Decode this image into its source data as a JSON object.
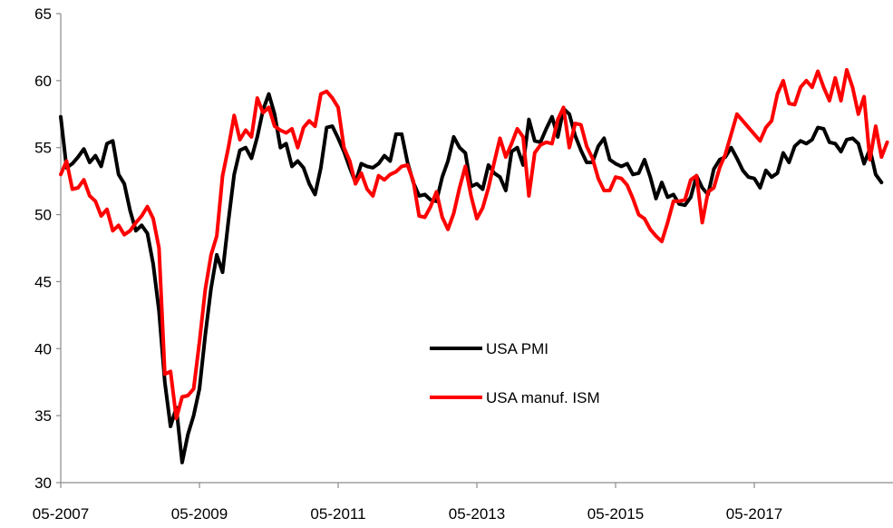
{
  "colors": {
    "usa_pmi": "#000000",
    "usa_ism": "#ff0000",
    "axis": "#8c8c8c"
  },
  "chart_data": {
    "type": "line",
    "title": "",
    "xlabel": "",
    "ylabel": "",
    "ylim": [
      30,
      65
    ],
    "yticks": [
      30,
      35,
      40,
      45,
      50,
      55,
      60,
      65
    ],
    "xlim": [
      "05-2007",
      "11-2018"
    ],
    "xticks": [
      "05-2007",
      "05-2009",
      "05-2011",
      "05-2013",
      "05-2015",
      "05-2017"
    ],
    "grid": false,
    "legend_position": "center-right",
    "series": [
      {
        "name": "USA PMI",
        "color": "#000000",
        "points": [
          [
            "2007-05",
            57.3
          ],
          [
            "2007-06",
            53.5
          ],
          [
            "2007-07",
            53.8
          ],
          [
            "2007-08",
            54.3
          ],
          [
            "2007-09",
            54.9
          ],
          [
            "2007-10",
            53.9
          ],
          [
            "2007-11",
            54.4
          ],
          [
            "2007-12",
            53.6
          ],
          [
            "2008-01",
            55.3
          ],
          [
            "2008-02",
            55.5
          ],
          [
            "2008-03",
            53.0
          ],
          [
            "2008-04",
            52.3
          ],
          [
            "2008-05",
            50.3
          ],
          [
            "2008-06",
            48.8
          ],
          [
            "2008-07",
            49.2
          ],
          [
            "2008-08",
            48.6
          ],
          [
            "2008-09",
            46.3
          ],
          [
            "2008-10",
            42.8
          ],
          [
            "2008-11",
            37.5
          ],
          [
            "2008-12",
            34.2
          ],
          [
            "2009-01",
            35.6
          ],
          [
            "2009-02",
            31.5
          ],
          [
            "2009-03",
            33.6
          ],
          [
            "2009-04",
            35.0
          ],
          [
            "2009-05",
            37.0
          ],
          [
            "2009-06",
            41.0
          ],
          [
            "2009-07",
            44.5
          ],
          [
            "2009-08",
            47.0
          ],
          [
            "2009-09",
            45.7
          ],
          [
            "2009-10",
            49.5
          ],
          [
            "2009-11",
            53.0
          ],
          [
            "2009-12",
            54.8
          ],
          [
            "2010-01",
            55.0
          ],
          [
            "2010-02",
            54.2
          ],
          [
            "2010-03",
            55.8
          ],
          [
            "2010-04",
            57.8
          ],
          [
            "2010-05",
            59.0
          ],
          [
            "2010-06",
            57.5
          ],
          [
            "2010-07",
            55.0
          ],
          [
            "2010-08",
            55.3
          ],
          [
            "2010-09",
            53.6
          ],
          [
            "2010-10",
            54.0
          ],
          [
            "2010-11",
            53.5
          ],
          [
            "2010-12",
            52.3
          ],
          [
            "2011-01",
            51.5
          ],
          [
            "2011-02",
            53.5
          ],
          [
            "2011-03",
            56.5
          ],
          [
            "2011-04",
            56.6
          ],
          [
            "2011-05",
            55.7
          ],
          [
            "2011-06",
            54.7
          ],
          [
            "2011-07",
            53.5
          ],
          [
            "2011-08",
            52.4
          ],
          [
            "2011-09",
            53.8
          ],
          [
            "2011-10",
            53.6
          ],
          [
            "2011-11",
            53.5
          ],
          [
            "2011-12",
            53.8
          ],
          [
            "2012-01",
            54.4
          ],
          [
            "2012-02",
            54.0
          ],
          [
            "2012-03",
            56.0
          ],
          [
            "2012-04",
            56.0
          ],
          [
            "2012-05",
            53.9
          ],
          [
            "2012-06",
            52.4
          ],
          [
            "2012-07",
            51.4
          ],
          [
            "2012-08",
            51.5
          ],
          [
            "2012-09",
            51.1
          ],
          [
            "2012-10",
            51.0
          ],
          [
            "2012-11",
            52.8
          ],
          [
            "2012-12",
            54.0
          ],
          [
            "2013-01",
            55.8
          ],
          [
            "2013-02",
            55.0
          ],
          [
            "2013-03",
            54.6
          ],
          [
            "2013-04",
            52.1
          ],
          [
            "2013-05",
            52.3
          ],
          [
            "2013-06",
            51.9
          ],
          [
            "2013-07",
            53.7
          ],
          [
            "2013-08",
            53.1
          ],
          [
            "2013-09",
            52.8
          ],
          [
            "2013-10",
            51.8
          ],
          [
            "2013-11",
            54.7
          ],
          [
            "2013-12",
            55.0
          ],
          [
            "2014-01",
            53.7
          ],
          [
            "2014-02",
            57.1
          ],
          [
            "2014-03",
            55.5
          ],
          [
            "2014-04",
            55.4
          ],
          [
            "2014-05",
            56.4
          ],
          [
            "2014-06",
            57.3
          ],
          [
            "2014-07",
            55.8
          ],
          [
            "2014-08",
            57.9
          ],
          [
            "2014-09",
            57.5
          ],
          [
            "2014-10",
            55.9
          ],
          [
            "2014-11",
            54.8
          ],
          [
            "2014-12",
            53.9
          ],
          [
            "2015-01",
            53.9
          ],
          [
            "2015-02",
            55.1
          ],
          [
            "2015-03",
            55.7
          ],
          [
            "2015-04",
            54.1
          ],
          [
            "2015-05",
            53.8
          ],
          [
            "2015-06",
            53.6
          ],
          [
            "2015-07",
            53.8
          ],
          [
            "2015-08",
            53.0
          ],
          [
            "2015-09",
            53.1
          ],
          [
            "2015-10",
            54.1
          ],
          [
            "2015-11",
            52.8
          ],
          [
            "2015-12",
            51.2
          ],
          [
            "2016-01",
            52.4
          ],
          [
            "2016-02",
            51.3
          ],
          [
            "2016-03",
            51.5
          ],
          [
            "2016-04",
            50.8
          ],
          [
            "2016-05",
            50.7
          ],
          [
            "2016-06",
            51.3
          ],
          [
            "2016-07",
            52.9
          ],
          [
            "2016-08",
            52.0
          ],
          [
            "2016-09",
            51.5
          ],
          [
            "2016-10",
            53.4
          ],
          [
            "2016-11",
            54.1
          ],
          [
            "2016-12",
            54.3
          ],
          [
            "2017-01",
            55.0
          ],
          [
            "2017-02",
            54.2
          ],
          [
            "2017-03",
            53.3
          ],
          [
            "2017-04",
            52.8
          ],
          [
            "2017-05",
            52.7
          ],
          [
            "2017-06",
            52.0
          ],
          [
            "2017-07",
            53.3
          ],
          [
            "2017-08",
            52.8
          ],
          [
            "2017-09",
            53.1
          ],
          [
            "2017-10",
            54.6
          ],
          [
            "2017-11",
            53.9
          ],
          [
            "2017-12",
            55.1
          ],
          [
            "2018-01",
            55.5
          ],
          [
            "2018-02",
            55.3
          ],
          [
            "2018-03",
            55.6
          ],
          [
            "2018-04",
            56.5
          ],
          [
            "2018-05",
            56.4
          ],
          [
            "2018-06",
            55.4
          ],
          [
            "2018-07",
            55.3
          ],
          [
            "2018-08",
            54.7
          ],
          [
            "2018-09",
            55.6
          ],
          [
            "2018-10",
            55.7
          ],
          [
            "2018-11",
            55.3
          ],
          [
            "2018-12",
            53.8
          ],
          [
            "2019-01",
            54.9
          ],
          [
            "2019-02",
            53.0
          ],
          [
            "2019-03",
            52.4
          ]
        ]
      },
      {
        "name": "USA manuf. ISM",
        "color": "#ff0000",
        "points": [
          [
            "2007-05",
            53.0
          ],
          [
            "2007-06",
            54.0
          ],
          [
            "2007-07",
            51.9
          ],
          [
            "2007-08",
            52.0
          ],
          [
            "2007-09",
            52.6
          ],
          [
            "2007-10",
            51.4
          ],
          [
            "2007-11",
            51.0
          ],
          [
            "2007-12",
            49.9
          ],
          [
            "2008-01",
            50.4
          ],
          [
            "2008-02",
            48.8
          ],
          [
            "2008-03",
            49.2
          ],
          [
            "2008-04",
            48.5
          ],
          [
            "2008-05",
            48.8
          ],
          [
            "2008-06",
            49.4
          ],
          [
            "2008-07",
            49.9
          ],
          [
            "2008-08",
            50.6
          ],
          [
            "2008-09",
            49.7
          ],
          [
            "2008-10",
            47.5
          ],
          [
            "2008-11",
            38.1
          ],
          [
            "2008-12",
            38.3
          ],
          [
            "2009-01",
            34.8
          ],
          [
            "2009-02",
            36.4
          ],
          [
            "2009-03",
            36.5
          ],
          [
            "2009-04",
            37.0
          ],
          [
            "2009-05",
            40.5
          ],
          [
            "2009-06",
            44.4
          ],
          [
            "2009-07",
            47.0
          ],
          [
            "2009-08",
            48.4
          ],
          [
            "2009-09",
            52.9
          ],
          [
            "2009-10",
            55.0
          ],
          [
            "2009-11",
            57.4
          ],
          [
            "2009-12",
            55.6
          ],
          [
            "2010-01",
            56.3
          ],
          [
            "2010-02",
            55.8
          ],
          [
            "2010-03",
            58.7
          ],
          [
            "2010-04",
            57.6
          ],
          [
            "2010-05",
            58.0
          ],
          [
            "2010-06",
            56.6
          ],
          [
            "2010-07",
            56.3
          ],
          [
            "2010-08",
            56.1
          ],
          [
            "2010-09",
            56.4
          ],
          [
            "2010-10",
            55.0
          ],
          [
            "2010-11",
            56.5
          ],
          [
            "2010-12",
            57.0
          ],
          [
            "2011-01",
            56.6
          ],
          [
            "2011-02",
            59.0
          ],
          [
            "2011-03",
            59.2
          ],
          [
            "2011-04",
            58.7
          ],
          [
            "2011-05",
            58.0
          ],
          [
            "2011-06",
            55.0
          ],
          [
            "2011-07",
            54.0
          ],
          [
            "2011-08",
            52.3
          ],
          [
            "2011-09",
            53.1
          ],
          [
            "2011-10",
            51.9
          ],
          [
            "2011-11",
            51.4
          ],
          [
            "2011-12",
            52.9
          ],
          [
            "2012-01",
            52.6
          ],
          [
            "2012-02",
            53.0
          ],
          [
            "2012-03",
            53.2
          ],
          [
            "2012-04",
            53.6
          ],
          [
            "2012-05",
            53.7
          ],
          [
            "2012-06",
            52.5
          ],
          [
            "2012-07",
            49.9
          ],
          [
            "2012-08",
            49.8
          ],
          [
            "2012-09",
            50.6
          ],
          [
            "2012-10",
            51.7
          ],
          [
            "2012-11",
            49.8
          ],
          [
            "2012-12",
            48.9
          ],
          [
            "2013-01",
            50.1
          ],
          [
            "2013-02",
            52.0
          ],
          [
            "2013-03",
            53.6
          ],
          [
            "2013-04",
            51.4
          ],
          [
            "2013-05",
            49.7
          ],
          [
            "2013-06",
            50.5
          ],
          [
            "2013-07",
            52.0
          ],
          [
            "2013-08",
            53.9
          ],
          [
            "2013-09",
            55.7
          ],
          [
            "2013-10",
            54.3
          ],
          [
            "2013-11",
            55.3
          ],
          [
            "2013-12",
            56.4
          ],
          [
            "2014-01",
            55.8
          ],
          [
            "2014-02",
            51.4
          ],
          [
            "2014-03",
            54.6
          ],
          [
            "2014-04",
            55.2
          ],
          [
            "2014-05",
            55.4
          ],
          [
            "2014-06",
            55.3
          ],
          [
            "2014-07",
            57.1
          ],
          [
            "2014-08",
            58.0
          ],
          [
            "2014-09",
            55.0
          ],
          [
            "2014-10",
            56.8
          ],
          [
            "2014-11",
            56.7
          ],
          [
            "2014-12",
            55.1
          ],
          [
            "2015-01",
            54.2
          ],
          [
            "2015-02",
            52.7
          ],
          [
            "2015-03",
            51.8
          ],
          [
            "2015-04",
            51.8
          ],
          [
            "2015-05",
            52.8
          ],
          [
            "2015-06",
            52.7
          ],
          [
            "2015-07",
            52.2
          ],
          [
            "2015-08",
            51.2
          ],
          [
            "2015-09",
            50.0
          ],
          [
            "2015-10",
            49.7
          ],
          [
            "2015-11",
            48.9
          ],
          [
            "2015-12",
            48.4
          ],
          [
            "2016-01",
            48.0
          ],
          [
            "2016-02",
            49.4
          ],
          [
            "2016-03",
            51.0
          ],
          [
            "2016-04",
            51.0
          ],
          [
            "2016-05",
            51.1
          ],
          [
            "2016-06",
            52.6
          ],
          [
            "2016-07",
            52.9
          ],
          [
            "2016-08",
            49.4
          ],
          [
            "2016-09",
            51.7
          ],
          [
            "2016-10",
            52.0
          ],
          [
            "2016-11",
            53.5
          ],
          [
            "2016-12",
            54.5
          ],
          [
            "2017-01",
            56.0
          ],
          [
            "2017-02",
            57.5
          ],
          [
            "2017-03",
            57.0
          ],
          [
            "2017-04",
            56.5
          ],
          [
            "2017-05",
            56.0
          ],
          [
            "2017-06",
            55.5
          ],
          [
            "2017-07",
            56.5
          ],
          [
            "2017-08",
            57.0
          ],
          [
            "2017-09",
            59.0
          ],
          [
            "2017-10",
            60.0
          ],
          [
            "2017-11",
            58.3
          ],
          [
            "2017-12",
            58.2
          ],
          [
            "2018-01",
            59.5
          ],
          [
            "2018-02",
            60.0
          ],
          [
            "2018-03",
            59.5
          ],
          [
            "2018-04",
            60.7
          ],
          [
            "2018-05",
            59.5
          ],
          [
            "2018-06",
            58.5
          ],
          [
            "2018-07",
            60.2
          ],
          [
            "2018-08",
            58.5
          ],
          [
            "2018-09",
            60.8
          ],
          [
            "2018-10",
            59.5
          ],
          [
            "2018-11",
            57.5
          ],
          [
            "2018-12",
            58.8
          ],
          [
            "2019-01",
            54.1
          ],
          [
            "2019-02",
            56.6
          ],
          [
            "2019-03",
            54.3
          ],
          [
            "2019-04",
            55.4
          ]
        ]
      }
    ]
  }
}
